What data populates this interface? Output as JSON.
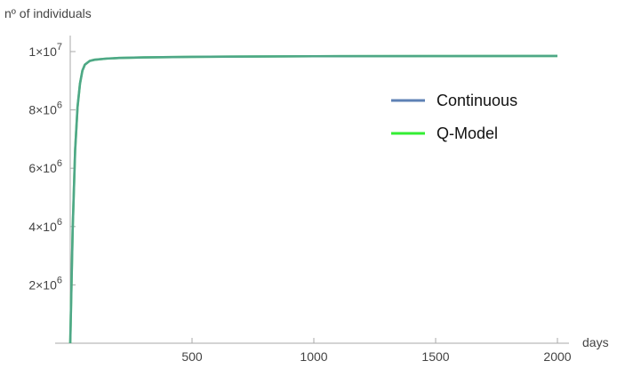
{
  "chart_data": {
    "type": "line",
    "title": "",
    "ylabel": "nº of individuals",
    "xlabel": "days",
    "xlim": [
      0,
      2000
    ],
    "ylim": [
      0,
      10000000
    ],
    "x_ticks": [
      {
        "value": 500,
        "label": "500"
      },
      {
        "value": 1000,
        "label": "1000"
      },
      {
        "value": 1500,
        "label": "1500"
      },
      {
        "value": 2000,
        "label": "2000"
      }
    ],
    "y_ticks": [
      {
        "value": 2000000,
        "mantissa": "2",
        "exponent": "6"
      },
      {
        "value": 4000000,
        "mantissa": "4",
        "exponent": "6"
      },
      {
        "value": 6000000,
        "mantissa": "6",
        "exponent": "6"
      },
      {
        "value": 8000000,
        "mantissa": "8",
        "exponent": "6"
      },
      {
        "value": 10000000,
        "mantissa": "1",
        "exponent": "7"
      }
    ],
    "grid": false,
    "legend_position": "top-right",
    "series": [
      {
        "name": "Continuous",
        "color": "#5e81b5",
        "x": [
          0,
          10,
          20,
          30,
          40,
          50,
          60,
          80,
          100,
          150,
          200,
          300,
          500,
          750,
          1000,
          1500,
          2000
        ],
        "y": [
          0,
          3900000,
          6600000,
          8100000,
          8900000,
          9350000,
          9550000,
          9680000,
          9720000,
          9760000,
          9780000,
          9800000,
          9820000,
          9830000,
          9840000,
          9845000,
          9850000
        ]
      },
      {
        "name": "Q-Model",
        "color": "#33ee33",
        "x": [
          0,
          10,
          20,
          30,
          40,
          50,
          60,
          80,
          100,
          150,
          200,
          300,
          500,
          750,
          1000,
          1500,
          2000
        ],
        "y": [
          0,
          3900000,
          6600000,
          8100000,
          8900000,
          9350000,
          9550000,
          9680000,
          9720000,
          9760000,
          9780000,
          9800000,
          9820000,
          9830000,
          9840000,
          9845000,
          9850000
        ]
      }
    ]
  }
}
